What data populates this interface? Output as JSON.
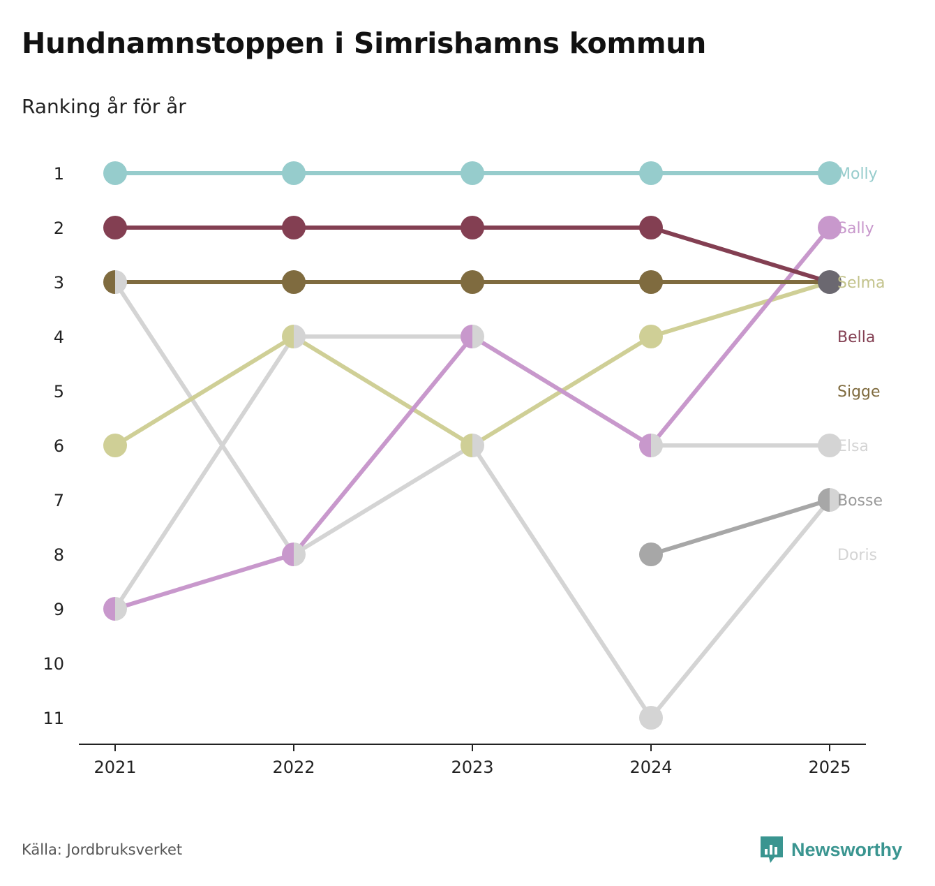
{
  "title": "Hundnamnstoppen i Simrishamns kommun",
  "subtitle": "Ranking år för år",
  "source": "Källa: Jordbruksverket",
  "brand": "Newsworthy",
  "colors": {
    "brand": "#3a9590",
    "axis": "#222222",
    "tie_gray": "#d3d3d3"
  },
  "chart_data": {
    "type": "line",
    "title": "Hundnamnstoppen i Simrishamns kommun",
    "subtitle": "Ranking år för år",
    "x": [
      "2021",
      "2022",
      "2023",
      "2024",
      "2025"
    ],
    "y_ticks": [
      1,
      2,
      3,
      4,
      5,
      6,
      7,
      8,
      9,
      10,
      11
    ],
    "ylim": [
      1,
      11
    ],
    "y_reversed": true,
    "xlabel": "",
    "ylabel": "",
    "series": [
      {
        "name": "Doris",
        "color": "#d4d4d4",
        "values": [
          3,
          8,
          6,
          11,
          7
        ]
      },
      {
        "name": "Elsa",
        "color": "#d4d4d4",
        "values": [
          9,
          4,
          4,
          6,
          6
        ]
      },
      {
        "name": "Bosse",
        "color": "#a7a7a7",
        "label_color": "#9a9a9a",
        "values": [
          null,
          null,
          null,
          8,
          7
        ]
      },
      {
        "name": "Selma",
        "color": "#cfcf96",
        "label_color": "#c2c28a",
        "values": [
          6,
          4,
          6,
          4,
          3
        ]
      },
      {
        "name": "Sally",
        "color": "#c898cc",
        "values": [
          9,
          8,
          4,
          6,
          2
        ]
      },
      {
        "name": "Sigge",
        "color": "#7f6b3f",
        "values": [
          3,
          3,
          3,
          3,
          3
        ]
      },
      {
        "name": "Bella",
        "color": "#833f52",
        "values": [
          2,
          2,
          2,
          2,
          3
        ]
      },
      {
        "name": "Molly",
        "color": "#96cccc",
        "values": [
          1,
          1,
          1,
          1,
          1
        ]
      }
    ],
    "legend_order": [
      "Molly",
      "Sally",
      "Selma",
      "Bella",
      "Sigge",
      "Elsa",
      "Bosse",
      "Doris"
    ]
  }
}
